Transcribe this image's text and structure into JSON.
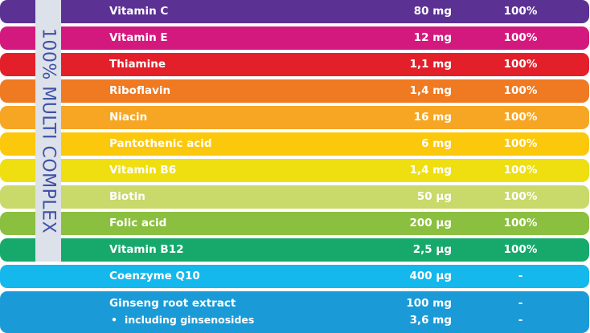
{
  "side_label": "100% MULTI COMPLEX",
  "rows": [
    {
      "name": "Vitamin C",
      "amount": "80 mg",
      "percent": "100%",
      "color": "#5b3293"
    },
    {
      "name": "Vitamin E",
      "amount": "12 mg",
      "percent": "100%",
      "color": "#d4197e"
    },
    {
      "name": "Thiamine",
      "amount": "1,1 mg",
      "percent": "100%",
      "color": "#e3202a"
    },
    {
      "name": "Riboflavin",
      "amount": "1,4 mg",
      "percent": "100%",
      "color": "#ef7a22"
    },
    {
      "name": "Niacin",
      "amount": "16 mg",
      "percent": "100%",
      "color": "#f7a624"
    },
    {
      "name": "Pantothenic acid",
      "amount": "6 mg",
      "percent": "100%",
      "color": "#fcc80b"
    },
    {
      "name": "Vitamin B6",
      "amount": "1,4 mg",
      "percent": "100%",
      "color": "#efdf10"
    },
    {
      "name": "Biotin",
      "amount": "50 µg",
      "percent": "100%",
      "color": "#c9d96a"
    },
    {
      "name": "Folic acid",
      "amount": "200 µg",
      "percent": "100%",
      "color": "#8bbf3f"
    },
    {
      "name": "Vitamin B12",
      "amount": "2,5 µg",
      "percent": "100%",
      "color": "#17a96b"
    },
    {
      "name": "Coenzyme Q10",
      "amount": "400 µg",
      "percent": "-",
      "color": "#14b8ec"
    },
    {
      "name": "Ginseng root extract",
      "amount": "100 mg",
      "percent": "-",
      "color": "#1a9bd8",
      "sub": {
        "name": "including ginsenosides",
        "amount": "3,6 mg",
        "percent": "-"
      }
    }
  ]
}
